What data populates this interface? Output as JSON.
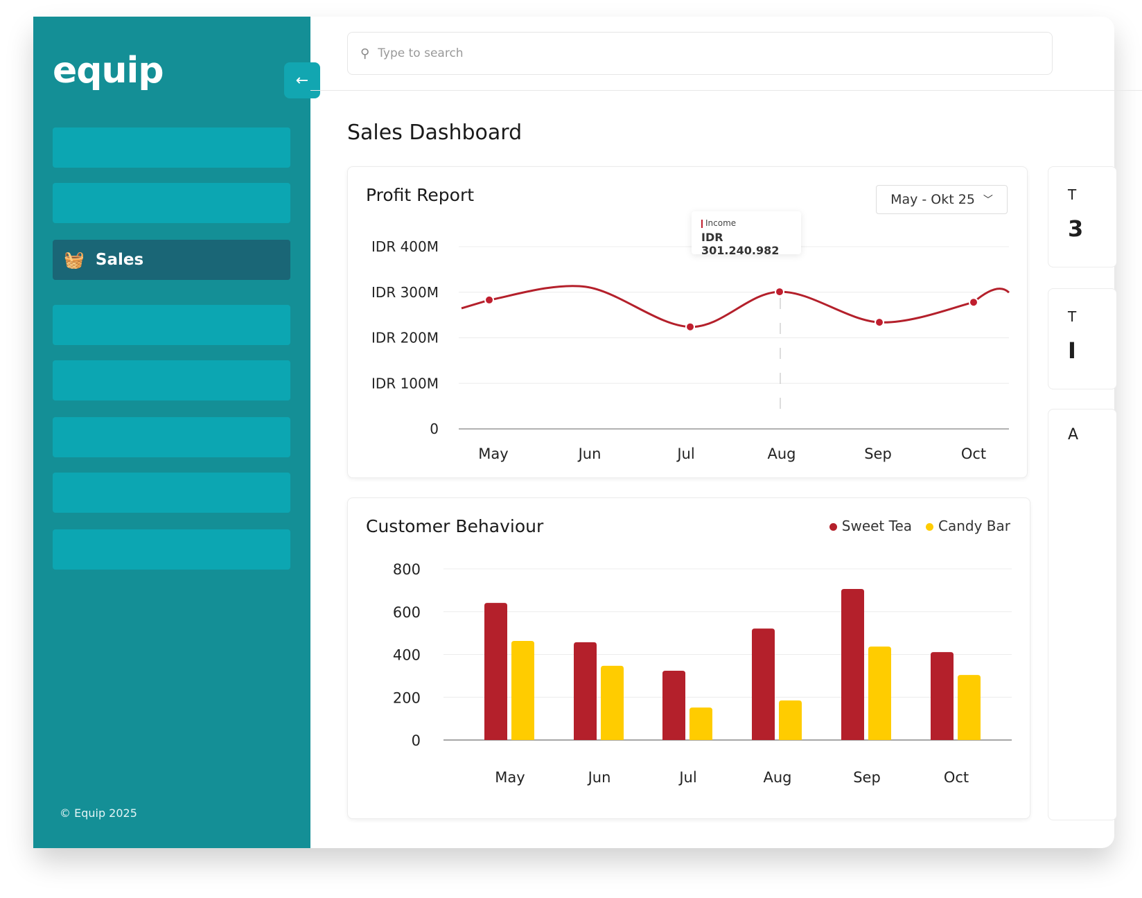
{
  "brand": {
    "logo": "equip",
    "copyright": "© Equip 2025"
  },
  "sidebar": {
    "active_item": "Sales",
    "collapse_icon": "arrow-left-icon"
  },
  "search": {
    "placeholder": "Type to search"
  },
  "page": {
    "title": "Sales Dashboard"
  },
  "profit": {
    "title": "Profit Report",
    "range": "May - Okt 25",
    "tooltip_label": "Income",
    "tooltip_value": "IDR 301.240.982"
  },
  "behaviour": {
    "title": "Customer Behaviour"
  },
  "right_panel": {
    "c1a": "T",
    "c1b": "3",
    "c2a": "T",
    "c2b": "I",
    "c3a": "A"
  },
  "colors": {
    "teal": "#148f96",
    "red": "#b4202b",
    "yellow": "#ffcc00"
  },
  "chart_data": [
    {
      "type": "line",
      "title": "Profit Report",
      "categories": [
        "May",
        "Jun",
        "Jul",
        "Aug",
        "Sep",
        "Oct"
      ],
      "series": [
        {
          "name": "Income",
          "values": [
            283,
            312,
            224,
            301,
            234,
            278
          ]
        }
      ],
      "yticks": [
        "0",
        "IDR 100M",
        "IDR 200M",
        "IDR 300M",
        "IDR 400M"
      ],
      "ylim": [
        0,
        400
      ],
      "yunit": "IDR M"
    },
    {
      "type": "bar",
      "title": "Customer Behaviour",
      "categories": [
        "May",
        "Jun",
        "Jul",
        "Aug",
        "Sep",
        "Oct"
      ],
      "series": [
        {
          "name": "Sweet Tea",
          "values": [
            641,
            457,
            324,
            521,
            706,
            411
          ]
        },
        {
          "name": "Candy Bar",
          "values": [
            463,
            347,
            152,
            185,
            437,
            304
          ]
        }
      ],
      "yticks": [
        "0",
        "200",
        "400",
        "600",
        "800"
      ],
      "ylim": [
        0,
        800
      ],
      "legend": "top-right"
    }
  ]
}
